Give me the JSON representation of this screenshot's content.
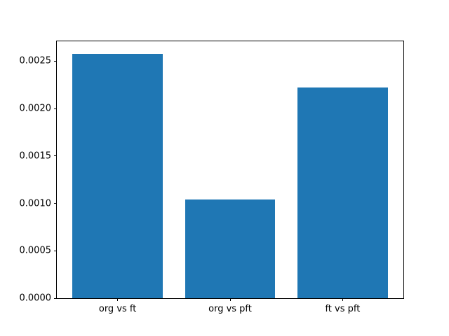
{
  "figure": {
    "background": "#ffffff"
  },
  "chart_data": {
    "type": "bar",
    "categories": [
      "org vs ft",
      "org vs pft",
      "ft vs pft"
    ],
    "values": [
      0.00258,
      0.00104,
      0.00222
    ],
    "bar_color": "#1f77b4",
    "ylim": [
      0,
      0.00271
    ],
    "yticks": [
      {
        "value": 0.0,
        "label": "0.0000"
      },
      {
        "value": 0.0005,
        "label": "0.0005"
      },
      {
        "value": 0.001,
        "label": "0.0010"
      },
      {
        "value": 0.0015,
        "label": "0.0015"
      },
      {
        "value": 0.002,
        "label": "0.0020"
      },
      {
        "value": 0.0025,
        "label": "0.0025"
      }
    ],
    "grid": false,
    "legend": "none"
  }
}
